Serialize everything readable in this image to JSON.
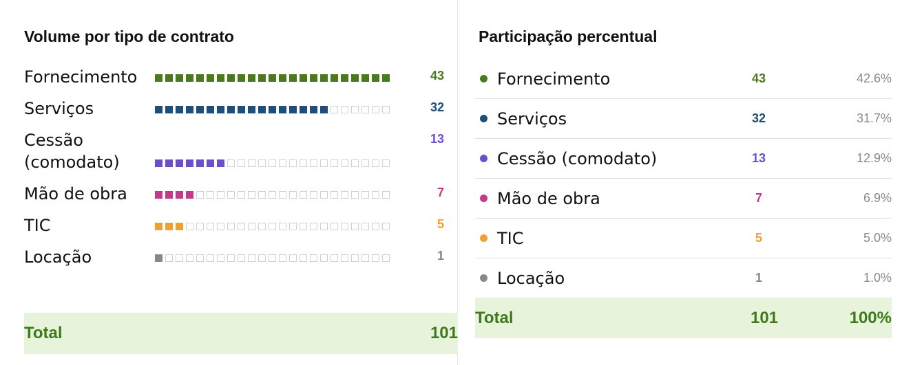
{
  "volume": {
    "title": "Volume por tipo de contrato"
  },
  "share": {
    "title": "Participação percentual",
    "total_share": "100%"
  },
  "total_label": "Total",
  "total": 101,
  "rows": [
    {
      "label": "Fornecimento",
      "value": 43,
      "share": "42.6%",
      "color": "#4a7a1e"
    },
    {
      "label": "Serviços",
      "value": 32,
      "share": "31.7%",
      "color": "#1f4e79"
    },
    {
      "label": "Cessão (comodato)",
      "value": 13,
      "share": "12.9%",
      "color": "#6a4fc8"
    },
    {
      "label": "Mão de obra",
      "value": 7,
      "share": "6.9%",
      "color": "#c23b8a"
    },
    {
      "label": "TIC",
      "value": 5,
      "share": "5.0%",
      "color": "#f0a030"
    },
    {
      "label": "Locação",
      "value": 1,
      "share": "1.0%",
      "color": "#888888"
    }
  ]
}
